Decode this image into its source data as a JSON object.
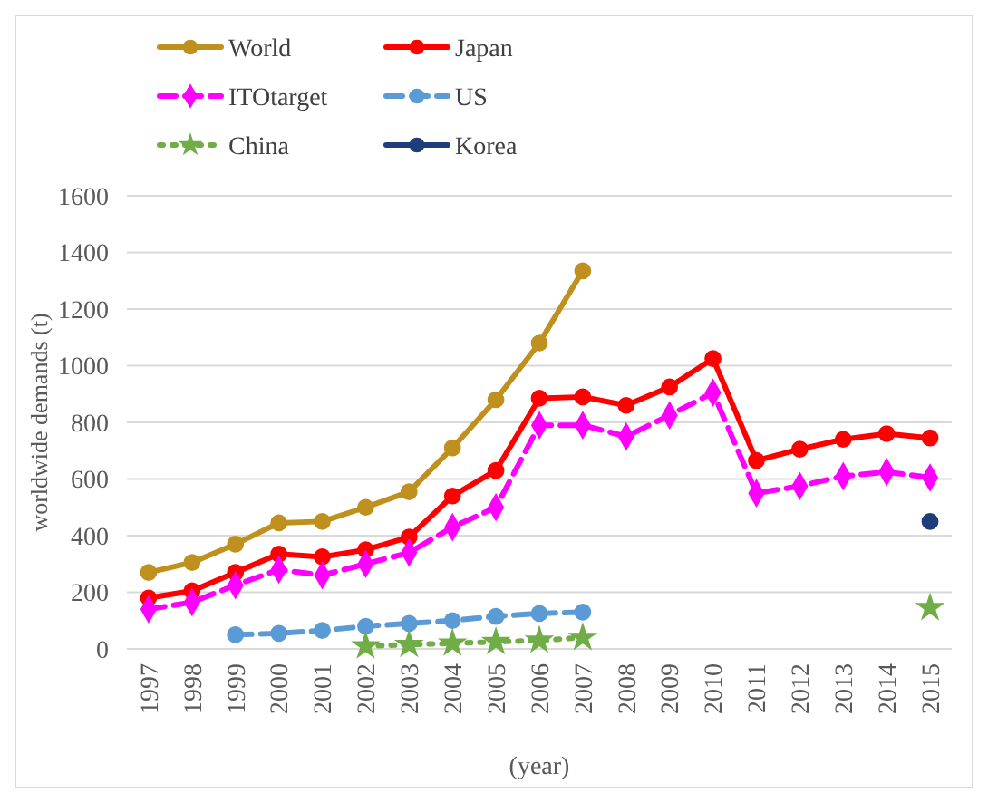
{
  "chart_data": {
    "type": "line",
    "xlabel": "(year)",
    "ylabel": "worldwide demands (t)",
    "categories": [
      "1997",
      "1998",
      "1999",
      "2000",
      "2001",
      "2002",
      "2003",
      "2004",
      "2005",
      "2006",
      "2007",
      "2008",
      "2009",
      "2010",
      "2011",
      "2012",
      "2013",
      "2014",
      "2015"
    ],
    "series": [
      {
        "name": "World",
        "color": "#c0901e",
        "marker": "circle",
        "line_style": "solid",
        "values": [
          270,
          305,
          370,
          445,
          450,
          500,
          555,
          710,
          880,
          1080,
          1335,
          null,
          null,
          null,
          null,
          null,
          null,
          null,
          null
        ]
      },
      {
        "name": "Japan",
        "color": "#ff0000",
        "marker": "circle",
        "line_style": "solid",
        "values": [
          180,
          205,
          270,
          335,
          325,
          350,
          395,
          540,
          630,
          885,
          890,
          860,
          925,
          1025,
          665,
          705,
          740,
          760,
          745
        ]
      },
      {
        "name": "ITOtarget",
        "color": "#ff00ff",
        "marker": "diamond",
        "line_style": "dashed",
        "values": [
          140,
          165,
          225,
          280,
          260,
          300,
          340,
          430,
          500,
          790,
          790,
          750,
          825,
          905,
          550,
          575,
          610,
          625,
          605
        ]
      },
      {
        "name": "US",
        "color": "#5b9bd5",
        "marker": "circle",
        "line_style": "dashed",
        "values": [
          null,
          null,
          50,
          55,
          65,
          80,
          90,
          100,
          115,
          125,
          130,
          null,
          null,
          null,
          null,
          null,
          null,
          null,
          null
        ]
      },
      {
        "name": "China",
        "color": "#70ad47",
        "marker": "star",
        "line_style": "dotted",
        "values": [
          null,
          null,
          null,
          null,
          null,
          10,
          15,
          20,
          25,
          30,
          40,
          null,
          null,
          null,
          null,
          null,
          null,
          null,
          145
        ]
      },
      {
        "name": "Korea",
        "color": "#1f3d7a",
        "marker": "circle",
        "line_style": "solid",
        "values": [
          null,
          null,
          null,
          null,
          null,
          null,
          null,
          null,
          null,
          null,
          null,
          null,
          null,
          null,
          null,
          null,
          null,
          null,
          450
        ]
      }
    ],
    "ylim": [
      0,
      1600
    ],
    "yticks": [
      0,
      200,
      400,
      600,
      800,
      1000,
      1200,
      1400,
      1600
    ],
    "grid": "y",
    "legend": "top left"
  }
}
